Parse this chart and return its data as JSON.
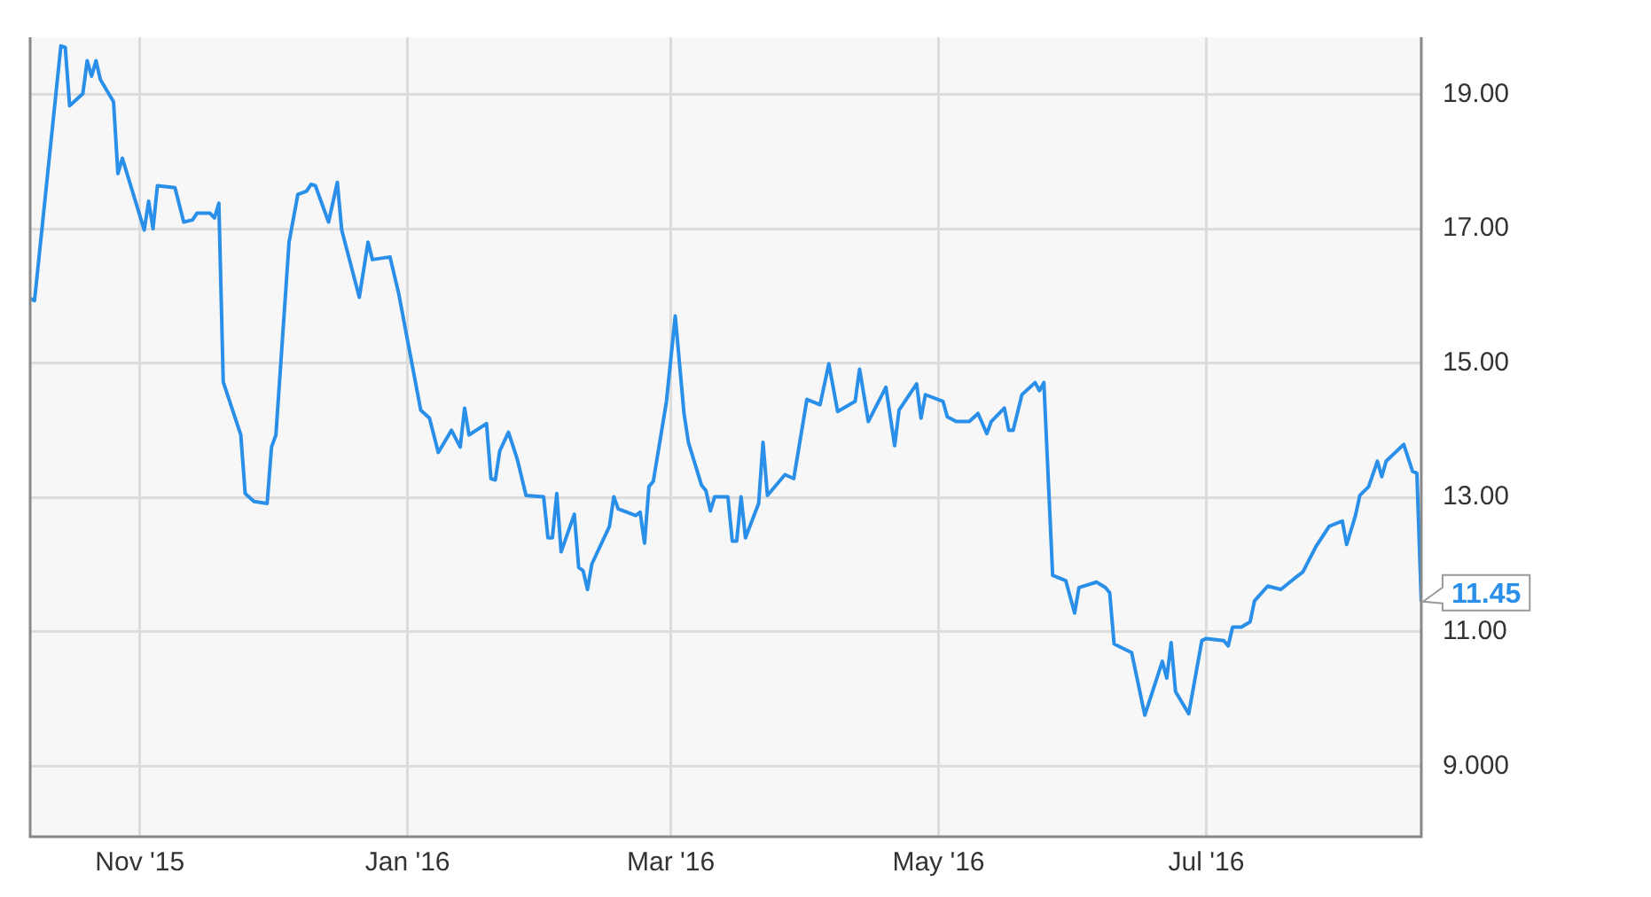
{
  "chart_data": {
    "type": "line",
    "color": "#2a8fe8",
    "x": [
      "2015-10-07",
      "2015-10-08",
      "2015-10-14",
      "2015-10-15",
      "2015-10-16",
      "2015-10-19",
      "2015-10-20",
      "2015-10-21",
      "2015-10-22",
      "2015-10-23",
      "2015-10-26",
      "2015-10-27",
      "2015-10-28",
      "2015-11-02",
      "2015-11-03",
      "2015-11-04",
      "2015-11-05",
      "2015-11-09",
      "2015-11-11",
      "2015-11-13",
      "2015-11-14",
      "2015-11-17",
      "2015-11-18",
      "2015-11-19",
      "2015-11-20",
      "2015-11-24",
      "2015-11-25",
      "2015-11-27",
      "2015-11-30",
      "2015-12-01",
      "2015-12-02",
      "2015-12-05",
      "2015-12-07",
      "2015-12-09",
      "2015-12-10",
      "2015-12-11",
      "2015-12-14",
      "2015-12-16",
      "2015-12-17",
      "2015-12-21",
      "2015-12-23",
      "2015-12-24",
      "2015-12-28",
      "2015-12-30",
      "2016-01-04",
      "2016-01-06",
      "2016-01-08",
      "2016-01-11",
      "2016-01-13",
      "2016-01-14",
      "2016-01-15",
      "2016-01-19",
      "2016-01-20",
      "2016-01-21",
      "2016-01-22",
      "2016-01-24",
      "2016-01-26",
      "2016-01-28",
      "2016-02-01",
      "2016-02-02",
      "2016-02-03",
      "2016-02-04",
      "2016-02-05",
      "2016-02-08",
      "2016-02-09",
      "2016-02-10",
      "2016-02-11",
      "2016-02-12",
      "2016-02-16",
      "2016-02-17",
      "2016-02-18",
      "2016-02-22",
      "2016-02-23",
      "2016-02-24",
      "2016-02-25",
      "2016-02-26",
      "2016-02-29",
      "2016-03-02",
      "2016-03-04",
      "2016-03-05",
      "2016-03-08",
      "2016-03-09",
      "2016-03-10",
      "2016-03-11",
      "2016-03-14",
      "2016-03-15",
      "2016-03-16",
      "2016-03-17",
      "2016-03-18",
      "2016-03-21",
      "2016-03-22",
      "2016-03-23",
      "2016-03-27",
      "2016-03-29",
      "2016-04-01",
      "2016-04-04",
      "2016-04-06",
      "2016-04-08",
      "2016-04-12",
      "2016-04-13",
      "2016-04-15",
      "2016-04-19",
      "2016-04-21",
      "2016-04-22",
      "2016-04-26",
      "2016-04-27",
      "2016-04-28",
      "2016-05-02",
      "2016-05-03",
      "2016-05-05",
      "2016-05-08",
      "2016-05-10",
      "2016-05-12",
      "2016-05-13",
      "2016-05-16",
      "2016-05-17",
      "2016-05-18",
      "2016-05-20",
      "2016-05-23",
      "2016-05-24",
      "2016-05-25",
      "2016-05-27",
      "2016-05-30",
      "2016-06-01",
      "2016-06-02",
      "2016-06-06",
      "2016-06-08",
      "2016-06-09",
      "2016-06-10",
      "2016-06-14",
      "2016-06-17",
      "2016-06-21",
      "2016-06-22",
      "2016-06-23",
      "2016-06-24",
      "2016-06-27",
      "2016-06-30",
      "2016-07-01",
      "2016-07-05",
      "2016-07-06",
      "2016-07-07",
      "2016-07-09",
      "2016-07-11",
      "2016-07-12",
      "2016-07-15",
      "2016-07-18",
      "2016-07-21",
      "2016-07-23",
      "2016-07-26",
      "2016-07-29",
      "2016-08-01",
      "2016-08-02",
      "2016-08-04",
      "2016-08-05",
      "2016-08-07",
      "2016-08-09",
      "2016-08-10",
      "2016-08-11",
      "2016-08-15",
      "2016-08-17",
      "2016-08-18",
      "2016-08-19"
    ],
    "values": [
      15.96,
      15.93,
      19.72,
      19.7,
      18.83,
      19.01,
      19.5,
      19.27,
      19.5,
      19.22,
      18.89,
      17.82,
      18.05,
      16.98,
      17.41,
      17.0,
      17.64,
      17.61,
      17.1,
      17.13,
      17.23,
      17.23,
      17.16,
      17.38,
      14.72,
      13.93,
      13.06,
      12.94,
      12.91,
      13.75,
      13.93,
      16.8,
      17.51,
      17.56,
      17.66,
      17.64,
      17.1,
      17.69,
      16.98,
      15.98,
      16.8,
      16.54,
      16.58,
      16.03,
      14.3,
      14.18,
      13.67,
      14.0,
      13.75,
      14.33,
      13.93,
      14.1,
      13.28,
      13.26,
      13.69,
      13.97,
      13.57,
      13.03,
      13.01,
      12.4,
      12.4,
      13.06,
      12.19,
      12.75,
      11.96,
      11.91,
      11.63,
      12.01,
      12.57,
      13.01,
      12.83,
      12.73,
      12.78,
      12.32,
      13.16,
      13.24,
      14.43,
      15.7,
      14.25,
      13.82,
      13.18,
      13.1,
      12.8,
      13.01,
      13.01,
      12.35,
      12.35,
      13.01,
      12.4,
      12.91,
      13.82,
      13.03,
      13.34,
      13.28,
      14.46,
      14.38,
      14.99,
      14.28,
      14.43,
      14.91,
      14.13,
      14.64,
      13.77,
      14.3,
      14.69,
      14.18,
      14.53,
      14.43,
      14.2,
      14.13,
      14.13,
      14.25,
      13.95,
      14.13,
      14.33,
      14.0,
      14.0,
      14.53,
      14.71,
      14.59,
      14.71,
      11.84,
      11.76,
      11.28,
      11.66,
      11.74,
      11.66,
      11.58,
      10.82,
      10.69,
      9.76,
      10.56,
      10.31,
      10.84,
      10.11,
      9.78,
      10.87,
      10.9,
      10.87,
      10.79,
      11.07,
      11.07,
      11.15,
      11.46,
      11.68,
      11.63,
      11.79,
      11.89,
      12.27,
      12.57,
      12.65,
      12.3,
      12.73,
      13.03,
      13.16,
      13.54,
      13.31,
      13.54,
      13.79,
      13.39,
      13.36,
      11.45
    ],
    "xlim": [
      "2015-10-07",
      "2016-08-19"
    ],
    "xticks": [
      {
        "value": "2015-11-01",
        "label": "Nov '15"
      },
      {
        "value": "2016-01-01",
        "label": "Jan '16"
      },
      {
        "value": "2016-03-01",
        "label": "Mar '16"
      },
      {
        "value": "2016-05-01",
        "label": "May '16"
      },
      {
        "value": "2016-07-01",
        "label": "Jul '16"
      }
    ],
    "ylim": [
      7.95,
      19.85
    ],
    "yticks": [
      {
        "value": 9,
        "label": "9.000"
      },
      {
        "value": 11,
        "label": "11.00"
      },
      {
        "value": 13,
        "label": "13.00"
      },
      {
        "value": 15,
        "label": "15.00"
      },
      {
        "value": 17,
        "label": "17.00"
      },
      {
        "value": 19,
        "label": "19.00"
      }
    ],
    "grid": true,
    "legend": false,
    "marker": "none",
    "line_style": "solid",
    "annotations": [
      {
        "text": "11.45",
        "x": "2016-08-19",
        "y": 11.45
      }
    ]
  }
}
